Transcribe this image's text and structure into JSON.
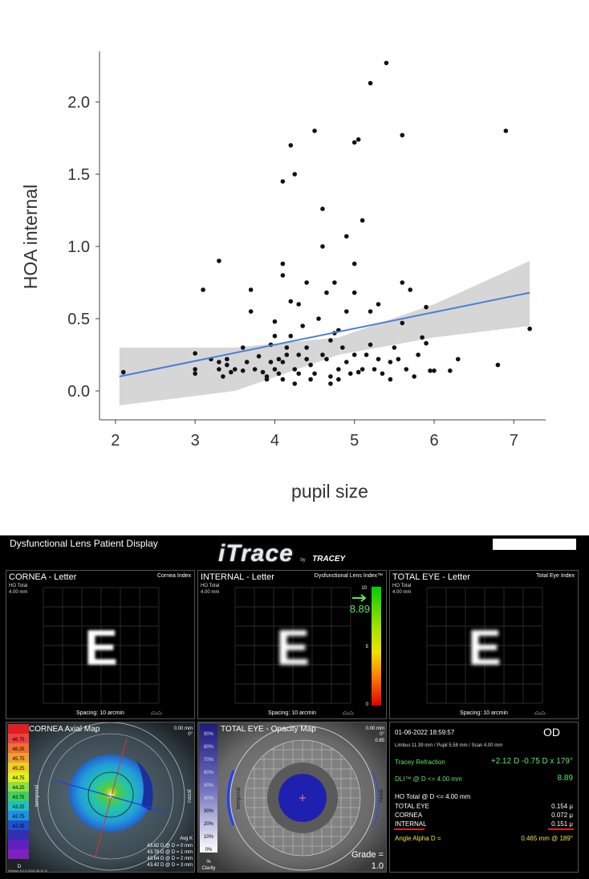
{
  "chart_data": {
    "type": "scatter",
    "xlabel": "pupil size",
    "ylabel": "HOA internal",
    "xlim": [
      1.8,
      7.4
    ],
    "ylim": [
      -0.2,
      2.35
    ],
    "xticks": [
      "2",
      "3",
      "4",
      "5",
      "6",
      "7"
    ],
    "yticks": [
      "0.0",
      "0.5",
      "1.0",
      "1.5",
      "2.0"
    ],
    "trend": {
      "x": [
        2.05,
        7.2
      ],
      "y": [
        0.1,
        0.68
      ],
      "color": "#4a7fd6"
    },
    "band": {
      "lower": [
        -0.1,
        0.0,
        0.25,
        0.37,
        0.45
      ],
      "upper": [
        0.3,
        0.3,
        0.37,
        0.6,
        0.9
      ],
      "x": [
        2.05,
        3.5,
        4.8,
        6.0,
        7.2
      ],
      "color": "#cfcfcf"
    },
    "points": [
      [
        2.1,
        0.13
      ],
      [
        3.0,
        0.12
      ],
      [
        3.0,
        0.15
      ],
      [
        3.0,
        0.26
      ],
      [
        3.1,
        0.7
      ],
      [
        3.2,
        0.22
      ],
      [
        3.3,
        0.9
      ],
      [
        3.3,
        0.2
      ],
      [
        3.3,
        0.15
      ],
      [
        3.35,
        0.1
      ],
      [
        3.4,
        0.22
      ],
      [
        3.4,
        0.18
      ],
      [
        3.45,
        0.13
      ],
      [
        3.5,
        0.15
      ],
      [
        3.6,
        0.14
      ],
      [
        3.6,
        0.3
      ],
      [
        3.65,
        0.2
      ],
      [
        3.7,
        0.7
      ],
      [
        3.7,
        0.55
      ],
      [
        3.75,
        0.15
      ],
      [
        3.8,
        0.24
      ],
      [
        3.85,
        0.13
      ],
      [
        3.9,
        0.08
      ],
      [
        3.95,
        0.2
      ],
      [
        3.95,
        0.32
      ],
      [
        4.0,
        0.38
      ],
      [
        4.0,
        0.48
      ],
      [
        4.0,
        0.15
      ],
      [
        4.05,
        0.12
      ],
      [
        4.1,
        0.88
      ],
      [
        4.1,
        0.8
      ],
      [
        4.1,
        1.45
      ],
      [
        4.1,
        0.2
      ],
      [
        4.1,
        0.08
      ],
      [
        4.15,
        0.3
      ],
      [
        4.15,
        0.25
      ],
      [
        4.2,
        0.62
      ],
      [
        4.2,
        1.7
      ],
      [
        4.2,
        0.38
      ],
      [
        4.25,
        1.5
      ],
      [
        4.25,
        0.15
      ],
      [
        4.3,
        0.6
      ],
      [
        4.3,
        0.12
      ],
      [
        4.35,
        0.45
      ],
      [
        4.4,
        0.75
      ],
      [
        4.4,
        0.3
      ],
      [
        4.4,
        0.22
      ],
      [
        4.45,
        0.18
      ],
      [
        4.5,
        1.8
      ],
      [
        4.5,
        0.12
      ],
      [
        4.55,
        0.5
      ],
      [
        4.6,
        1.26
      ],
      [
        4.6,
        1.0
      ],
      [
        4.65,
        0.68
      ],
      [
        4.65,
        0.22
      ],
      [
        4.7,
        0.35
      ],
      [
        4.7,
        0.1
      ],
      [
        4.75,
        0.75
      ],
      [
        4.75,
        0.4
      ],
      [
        4.8,
        0.15
      ],
      [
        4.8,
        0.08
      ],
      [
        4.85,
        0.3
      ],
      [
        4.9,
        0.55
      ],
      [
        4.9,
        0.2
      ],
      [
        4.9,
        1.07
      ],
      [
        4.95,
        0.12
      ],
      [
        5.0,
        1.72
      ],
      [
        5.0,
        0.88
      ],
      [
        5.0,
        0.68
      ],
      [
        5.0,
        0.25
      ],
      [
        5.05,
        1.74
      ],
      [
        5.1,
        1.18
      ],
      [
        5.1,
        0.15
      ],
      [
        5.15,
        0.25
      ],
      [
        5.2,
        2.13
      ],
      [
        5.2,
        0.55
      ],
      [
        5.2,
        0.32
      ],
      [
        5.25,
        0.15
      ],
      [
        5.3,
        0.6
      ],
      [
        5.3,
        0.22
      ],
      [
        5.35,
        0.12
      ],
      [
        5.4,
        2.27
      ],
      [
        5.45,
        0.08
      ],
      [
        5.5,
        0.3
      ],
      [
        5.55,
        0.22
      ],
      [
        5.6,
        1.77
      ],
      [
        5.6,
        0.75
      ],
      [
        5.6,
        0.47
      ],
      [
        5.65,
        0.15
      ],
      [
        5.7,
        0.7
      ],
      [
        5.75,
        0.1
      ],
      [
        5.8,
        0.25
      ],
      [
        5.85,
        0.37
      ],
      [
        5.9,
        0.58
      ],
      [
        5.9,
        0.33
      ],
      [
        5.95,
        0.14
      ],
      [
        6.0,
        0.14
      ],
      [
        6.2,
        0.14
      ],
      [
        6.3,
        0.22
      ],
      [
        6.8,
        0.18
      ],
      [
        6.9,
        1.8
      ],
      [
        7.2,
        0.43
      ],
      [
        4.3,
        0.25
      ],
      [
        4.45,
        0.08
      ],
      [
        4.8,
        0.42
      ],
      [
        3.9,
        0.1
      ],
      [
        4.05,
        0.22
      ],
      [
        4.6,
        0.25
      ],
      [
        5.05,
        0.13
      ],
      [
        5.45,
        0.2
      ],
      [
        4.25,
        0.05
      ],
      [
        4.7,
        0.05
      ]
    ]
  },
  "itrace": {
    "window_title": "Dysfunctional Lens Patient Display",
    "logo_text": "iTrace",
    "logo_by": "by",
    "logo_brand": "TRACEY",
    "logo_brand_sub": "TECHNOLOGIES",
    "panels": {
      "cornea": {
        "title": "CORNEA - Letter",
        "index": "Cornea Index",
        "sub1": "HO Total",
        "sub2": "4.00 mm",
        "letter": "E",
        "spacing": "Spacing:  10 arcmin"
      },
      "internal": {
        "title": "INTERNAL - Letter",
        "index": "Dysfunctional Lens Index™",
        "sub1": "HO Total",
        "sub2": "4.00 mm",
        "letter": "E",
        "spacing": "Spacing:  10 arcmin",
        "dli_value": "8.89",
        "scale_top": "10",
        "scale_mid": "5",
        "scale_bottom": "0"
      },
      "total": {
        "title": "TOTAL EYE - Letter",
        "index": "Total Eye Index",
        "sub1": "HO Total",
        "sub2": "4.00 mm",
        "letter": "E",
        "spacing": "Spacing:  10 arcmin"
      }
    },
    "axial": {
      "title": "CORNEA  Axial Map",
      "legend": [
        "46.75",
        "46.25",
        "45.75",
        "45.25",
        "44.75",
        "44.25",
        "43.75",
        "43.25",
        "42.75",
        "42.25"
      ],
      "legend_unit": "D",
      "top_right": [
        "0.00 mm",
        "0°"
      ],
      "avg_k_title": "Avg K",
      "avg_k": [
        "43.82 D @ D = 0 mm",
        "43.78 D @ D = 1 mm",
        "43.64 D @ D = 2 mm",
        "43.42 D @ D = 3 mm"
      ],
      "side_left": "temporal",
      "side_right": "nasal",
      "version": "Version 6.2.0 2018-06-11 O"
    },
    "opacity": {
      "title": "TOTAL EYE - Opacity Map",
      "scale": [
        "90%",
        "80%",
        "70%",
        "60%",
        "50%",
        "40%",
        "30%",
        "20%",
        "10%",
        "0%"
      ],
      "scale_unit": "%",
      "scale_label": "Clarity",
      "top_right": [
        "0.00 mm",
        "0°",
        "0.85"
      ],
      "grade_label": "Grade =",
      "grade_value": "1.0",
      "side_left": "temporal",
      "side_right": "nasal"
    },
    "info": {
      "date": "01-06-2022   18:59:57",
      "eye": "OD",
      "measure": "Limbus 11.39 mm  /  Pupil 5.58 mm  /  Scan 4.00 mm",
      "refraction_label": "Tracey Refraction",
      "refraction_value": "+2.12 D -0.75 D x 179°",
      "dli_label": "DLI™ @ D <= 4.00 mm",
      "dli_value": "8.89",
      "ho_label": "HO Total @ D <= 4.00 mm",
      "rows": [
        {
          "label": "TOTAL EYE",
          "value": "0.154 μ"
        },
        {
          "label": "CORNEA",
          "value": "0.072 μ"
        },
        {
          "label": "INTERNAL",
          "value": "0.151 μ"
        }
      ],
      "angle_label": "Angle Alpha  D =",
      "angle_value": "0.465 mm @ 189°"
    },
    "colors": {
      "accent_green": "#5ee65e",
      "accent_yellow": "#f0e050",
      "underline_red": "#e02020"
    }
  }
}
